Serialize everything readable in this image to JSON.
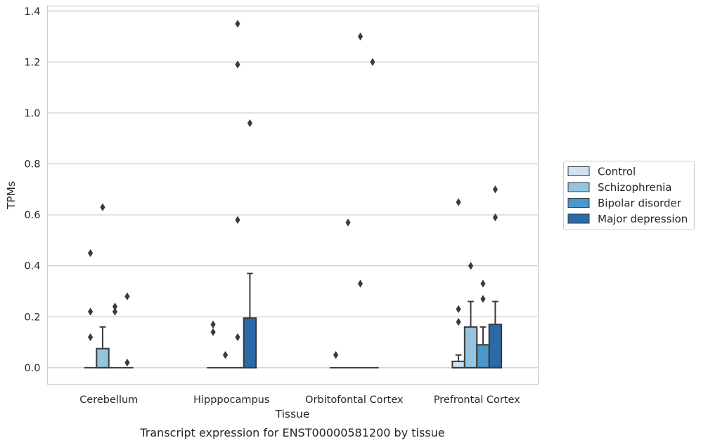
{
  "chart_data": {
    "type": "box",
    "caption": "Transcript expression for ENST00000581200 by tissue",
    "xlabel": "Tissue",
    "ylabel": "TPMs",
    "ylim": [
      -0.065,
      1.42
    ],
    "yticks": [
      0.0,
      0.2,
      0.4,
      0.6,
      0.8,
      1.0,
      1.2,
      1.4
    ],
    "ytick_labels": [
      "0.0",
      "0.2",
      "0.4",
      "0.6",
      "0.8",
      "1.0",
      "1.2",
      "1.4"
    ],
    "grid": true,
    "legend_position": "right",
    "categories": [
      "Cerebellum",
      "Hipppocampus",
      "Orbitofontal Cortex",
      "Prefrontal Cortex"
    ],
    "series": [
      {
        "name": "Control",
        "color": "#d0e1f2",
        "boxes": [
          {
            "q1": 0,
            "median": 0,
            "q3": 0,
            "whisker_low": 0,
            "whisker_high": 0,
            "outliers": [
              0.12,
              0.22,
              0.45
            ]
          },
          {
            "q1": 0,
            "median": 0,
            "q3": 0,
            "whisker_low": 0,
            "whisker_high": 0,
            "outliers": [
              0.14,
              0.17
            ]
          },
          {
            "q1": 0,
            "median": 0,
            "q3": 0,
            "whisker_low": 0,
            "whisker_high": 0,
            "outliers": [
              0.05
            ]
          },
          {
            "q1": 0,
            "median": 0,
            "q3": 0.025,
            "whisker_low": 0,
            "whisker_high": 0.05,
            "outliers": [
              0.18,
              0.23,
              0.65
            ]
          }
        ]
      },
      {
        "name": "Schizophrenia",
        "color": "#94c4df",
        "boxes": [
          {
            "q1": 0,
            "median": 0,
            "q3": 0.075,
            "whisker_low": 0,
            "whisker_high": 0.16,
            "outliers": [
              0.63
            ]
          },
          {
            "q1": 0,
            "median": 0,
            "q3": 0,
            "whisker_low": 0,
            "whisker_high": 0,
            "outliers": [
              0.05
            ]
          },
          {
            "q1": 0,
            "median": 0,
            "q3": 0,
            "whisker_low": 0,
            "whisker_high": 0,
            "outliers": [
              0.57
            ]
          },
          {
            "q1": 0,
            "median": 0,
            "q3": 0.16,
            "whisker_low": 0,
            "whisker_high": 0.26,
            "outliers": [
              0.4
            ]
          }
        ]
      },
      {
        "name": "Bipolar disorder",
        "color": "#4a98c9",
        "boxes": [
          {
            "q1": 0,
            "median": 0,
            "q3": 0,
            "whisker_low": 0,
            "whisker_high": 0,
            "outliers": [
              0.22,
              0.24
            ]
          },
          {
            "q1": 0,
            "median": 0,
            "q3": 0,
            "whisker_low": 0,
            "whisker_high": 0,
            "outliers": [
              0.12,
              0.58,
              1.19,
              1.35
            ]
          },
          {
            "q1": 0,
            "median": 0,
            "q3": 0,
            "whisker_low": 0,
            "whisker_high": 0,
            "outliers": [
              0.33,
              1.3
            ]
          },
          {
            "q1": 0,
            "median": 0,
            "q3": 0.09,
            "whisker_low": 0,
            "whisker_high": 0.16,
            "outliers": [
              0.27,
              0.33
            ]
          }
        ]
      },
      {
        "name": "Major depression",
        "color": "#2b6aa8",
        "boxes": [
          {
            "q1": 0,
            "median": 0,
            "q3": 0,
            "whisker_low": 0,
            "whisker_high": 0,
            "outliers": [
              0.02,
              0.28
            ]
          },
          {
            "q1": 0,
            "median": 0,
            "q3": 0.195,
            "whisker_low": 0,
            "whisker_high": 0.37,
            "outliers": [
              0.96
            ]
          },
          {
            "q1": 0,
            "median": 0,
            "q3": 0,
            "whisker_low": 0,
            "whisker_high": 0,
            "outliers": [
              1.2
            ]
          },
          {
            "q1": 0,
            "median": 0,
            "q3": 0.17,
            "whisker_low": 0,
            "whisker_high": 0.26,
            "outliers": [
              0.59,
              0.7
            ]
          }
        ]
      }
    ],
    "colors": {
      "grid": "#cccccc",
      "frame": "#cccccc",
      "box_edge": "#3a3a3a",
      "outlier": "#3a3a3a"
    }
  }
}
